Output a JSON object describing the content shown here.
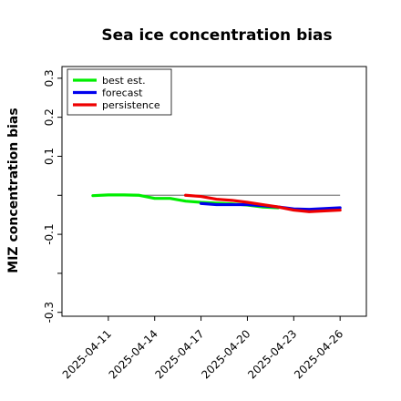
{
  "chart_data": {
    "type": "line",
    "title": "Sea ice concentration bias",
    "ylabel": "MIZ concentration bias",
    "xlabel": "",
    "ylim": [
      -0.31,
      0.33
    ],
    "yticks": [
      -0.3,
      -0.2,
      -0.1,
      0.0,
      0.1,
      0.2,
      0.3
    ],
    "ytick_labels": [
      "-0.3",
      "",
      "-0.1",
      "",
      "0.1",
      "0.2",
      "0.3"
    ],
    "x_dates": [
      "2025-04-11",
      "2025-04-14",
      "2025-04-17",
      "2025-04-20",
      "2025-04-23",
      "2025-04-26"
    ],
    "x_highlight": "2025-04-17",
    "x_highlight_color": "#228B22",
    "xlim": [
      "2025-04-08",
      "2025-04-27.7"
    ],
    "reference_line": {
      "y": 0.0,
      "color": "#808080"
    },
    "grid": false,
    "legend_placement": "top-left",
    "series": [
      {
        "name": "best est.",
        "color": "#00ee00",
        "points": [
          [
            "2025-04-10",
            -0.001
          ],
          [
            "2025-04-11",
            0.001
          ],
          [
            "2025-04-12",
            0.001
          ],
          [
            "2025-04-13",
            0.0
          ],
          [
            "2025-04-14",
            -0.008
          ],
          [
            "2025-04-15",
            -0.008
          ],
          [
            "2025-04-16",
            -0.015
          ],
          [
            "2025-04-17",
            -0.018
          ],
          [
            "2025-04-18",
            -0.02
          ],
          [
            "2025-04-19",
            -0.022
          ],
          [
            "2025-04-20",
            -0.025
          ],
          [
            "2025-04-21",
            -0.03
          ],
          [
            "2025-04-22",
            -0.032
          ]
        ]
      },
      {
        "name": "forecast",
        "color": "#0000ee",
        "points": [
          [
            "2025-04-17",
            -0.021
          ],
          [
            "2025-04-18",
            -0.024
          ],
          [
            "2025-04-19",
            -0.024
          ],
          [
            "2025-04-20",
            -0.024
          ],
          [
            "2025-04-21",
            -0.027
          ],
          [
            "2025-04-22",
            -0.03
          ],
          [
            "2025-04-23",
            -0.035
          ],
          [
            "2025-04-24",
            -0.036
          ],
          [
            "2025-04-25",
            -0.034
          ],
          [
            "2025-04-26",
            -0.032
          ]
        ]
      },
      {
        "name": "persistence",
        "color": "#ee0000",
        "points": [
          [
            "2025-04-16",
            0.0
          ],
          [
            "2025-04-17",
            -0.003
          ],
          [
            "2025-04-18",
            -0.01
          ],
          [
            "2025-04-19",
            -0.013
          ],
          [
            "2025-04-20",
            -0.018
          ],
          [
            "2025-04-21",
            -0.024
          ],
          [
            "2025-04-22",
            -0.03
          ],
          [
            "2025-04-23",
            -0.038
          ],
          [
            "2025-04-24",
            -0.042
          ],
          [
            "2025-04-25",
            -0.04
          ],
          [
            "2025-04-26",
            -0.038
          ]
        ]
      }
    ]
  }
}
